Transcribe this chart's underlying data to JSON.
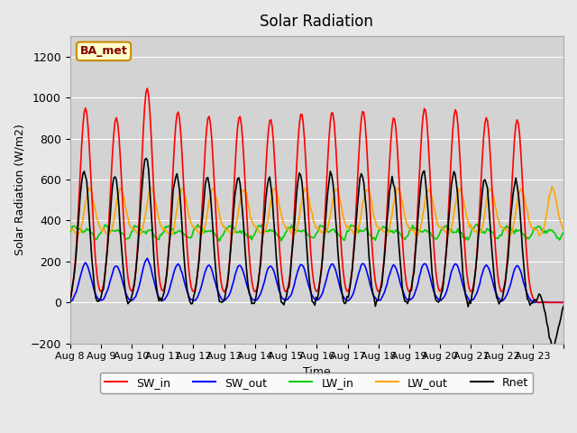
{
  "title": "Solar Radiation",
  "xlabel": "Time",
  "ylabel": "Solar Radiation (W/m2)",
  "station_label": "BA_met",
  "ylim": [
    -200,
    1300
  ],
  "yticks": [
    -200,
    0,
    200,
    400,
    600,
    800,
    1000,
    1200
  ],
  "date_labels": [
    "Aug 8",
    "Aug 9",
    "Aug 10",
    "Aug 11",
    "Aug 12",
    "Aug 13",
    "Aug 14",
    "Aug 15",
    "Aug 16",
    "Aug 17",
    "Aug 18",
    "Aug 19",
    "Aug 20",
    "Aug 21",
    "Aug 22",
    "Aug 23"
  ],
  "n_days": 16,
  "colors": {
    "SW_in": "#ff0000",
    "SW_out": "#0000ff",
    "LW_in": "#00cc00",
    "LW_out": "#ffa500",
    "Rnet": "#000000"
  },
  "background_color": "#e8e8e8",
  "plot_bg_color": "#d3d3d3",
  "legend_labels": [
    "SW_in",
    "SW_out",
    "LW_in",
    "LW_out",
    "Rnet"
  ]
}
